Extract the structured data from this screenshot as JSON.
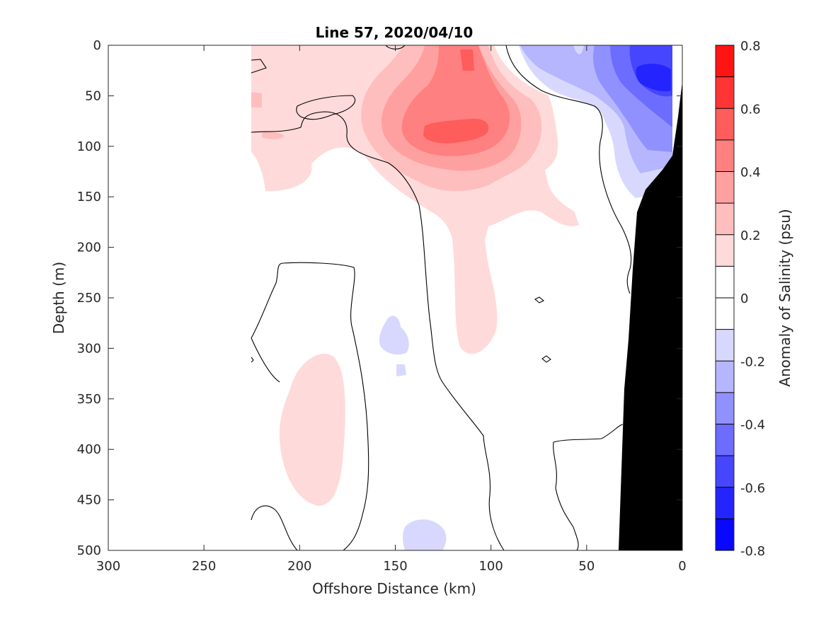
{
  "chart_data": {
    "type": "heatmap",
    "subtype": "filled-contour",
    "title": "Line 57, 2020/04/10",
    "xlabel": "Offshore Distance (km)",
    "ylabel": "Depth (m)",
    "xlim": [
      300,
      0
    ],
    "ylim": [
      0,
      500
    ],
    "x_reversed": true,
    "y_reversed": true,
    "x_ticks": [
      "300",
      "250",
      "200",
      "150",
      "100",
      "50",
      "0"
    ],
    "y_ticks": [
      "0",
      "50",
      "100",
      "150",
      "200",
      "250",
      "300",
      "350",
      "400",
      "450",
      "500"
    ],
    "colorbar": {
      "label": "Anomaly of Salinity (psu)",
      "range": [
        -0.8,
        0.8
      ],
      "ticks": [
        "0.8",
        "0.6",
        "0.4",
        "0.2",
        "0",
        "-0.2",
        "-0.4",
        "-0.6",
        "-0.8"
      ],
      "levels": [
        0.8,
        0.7,
        0.6,
        0.5,
        0.4,
        0.3,
        0.2,
        0.1,
        0,
        -0.1,
        -0.2,
        -0.3,
        -0.4,
        -0.5,
        -0.6,
        -0.7,
        -0.8
      ],
      "colors": [
        "#ff1414",
        "#ff3535",
        "#ff5c5c",
        "#ff8080",
        "#ffa0a0",
        "#ffbebe",
        "#ffdada",
        "#ffffff",
        "#ffffff",
        "#d8d8ff",
        "#b6b6ff",
        "#9090ff",
        "#6c6cff",
        "#4646ff",
        "#2424ff",
        "#0808ff"
      ]
    },
    "bathymetry": {
      "color": "#000000",
      "bottom_profile": [
        [
          33,
          500
        ],
        [
          30,
          350
        ],
        [
          26,
          200
        ],
        [
          21,
          150
        ],
        [
          13,
          115
        ],
        [
          5,
          70
        ],
        [
          0,
          35
        ]
      ]
    },
    "anomaly_features": [
      {
        "sign": "positive",
        "peak_psu": 0.5,
        "center_km": 118,
        "center_depth_m": 85,
        "description_level": "core"
      },
      {
        "sign": "positive",
        "peak_psu": 0.2,
        "center_km": 192,
        "center_depth_m": 385
      },
      {
        "sign": "negative",
        "peak_psu": -0.6,
        "center_km": 12,
        "center_depth_m": 30
      },
      {
        "sign": "negative",
        "peak_psu": -0.2,
        "center_km": 130,
        "center_depth_m": 490
      },
      {
        "sign": "negative",
        "peak_psu": -0.2,
        "center_km": 150,
        "center_depth_m": 290
      }
    ],
    "data_extent_km": [
      0,
      225
    ],
    "grid": false
  }
}
